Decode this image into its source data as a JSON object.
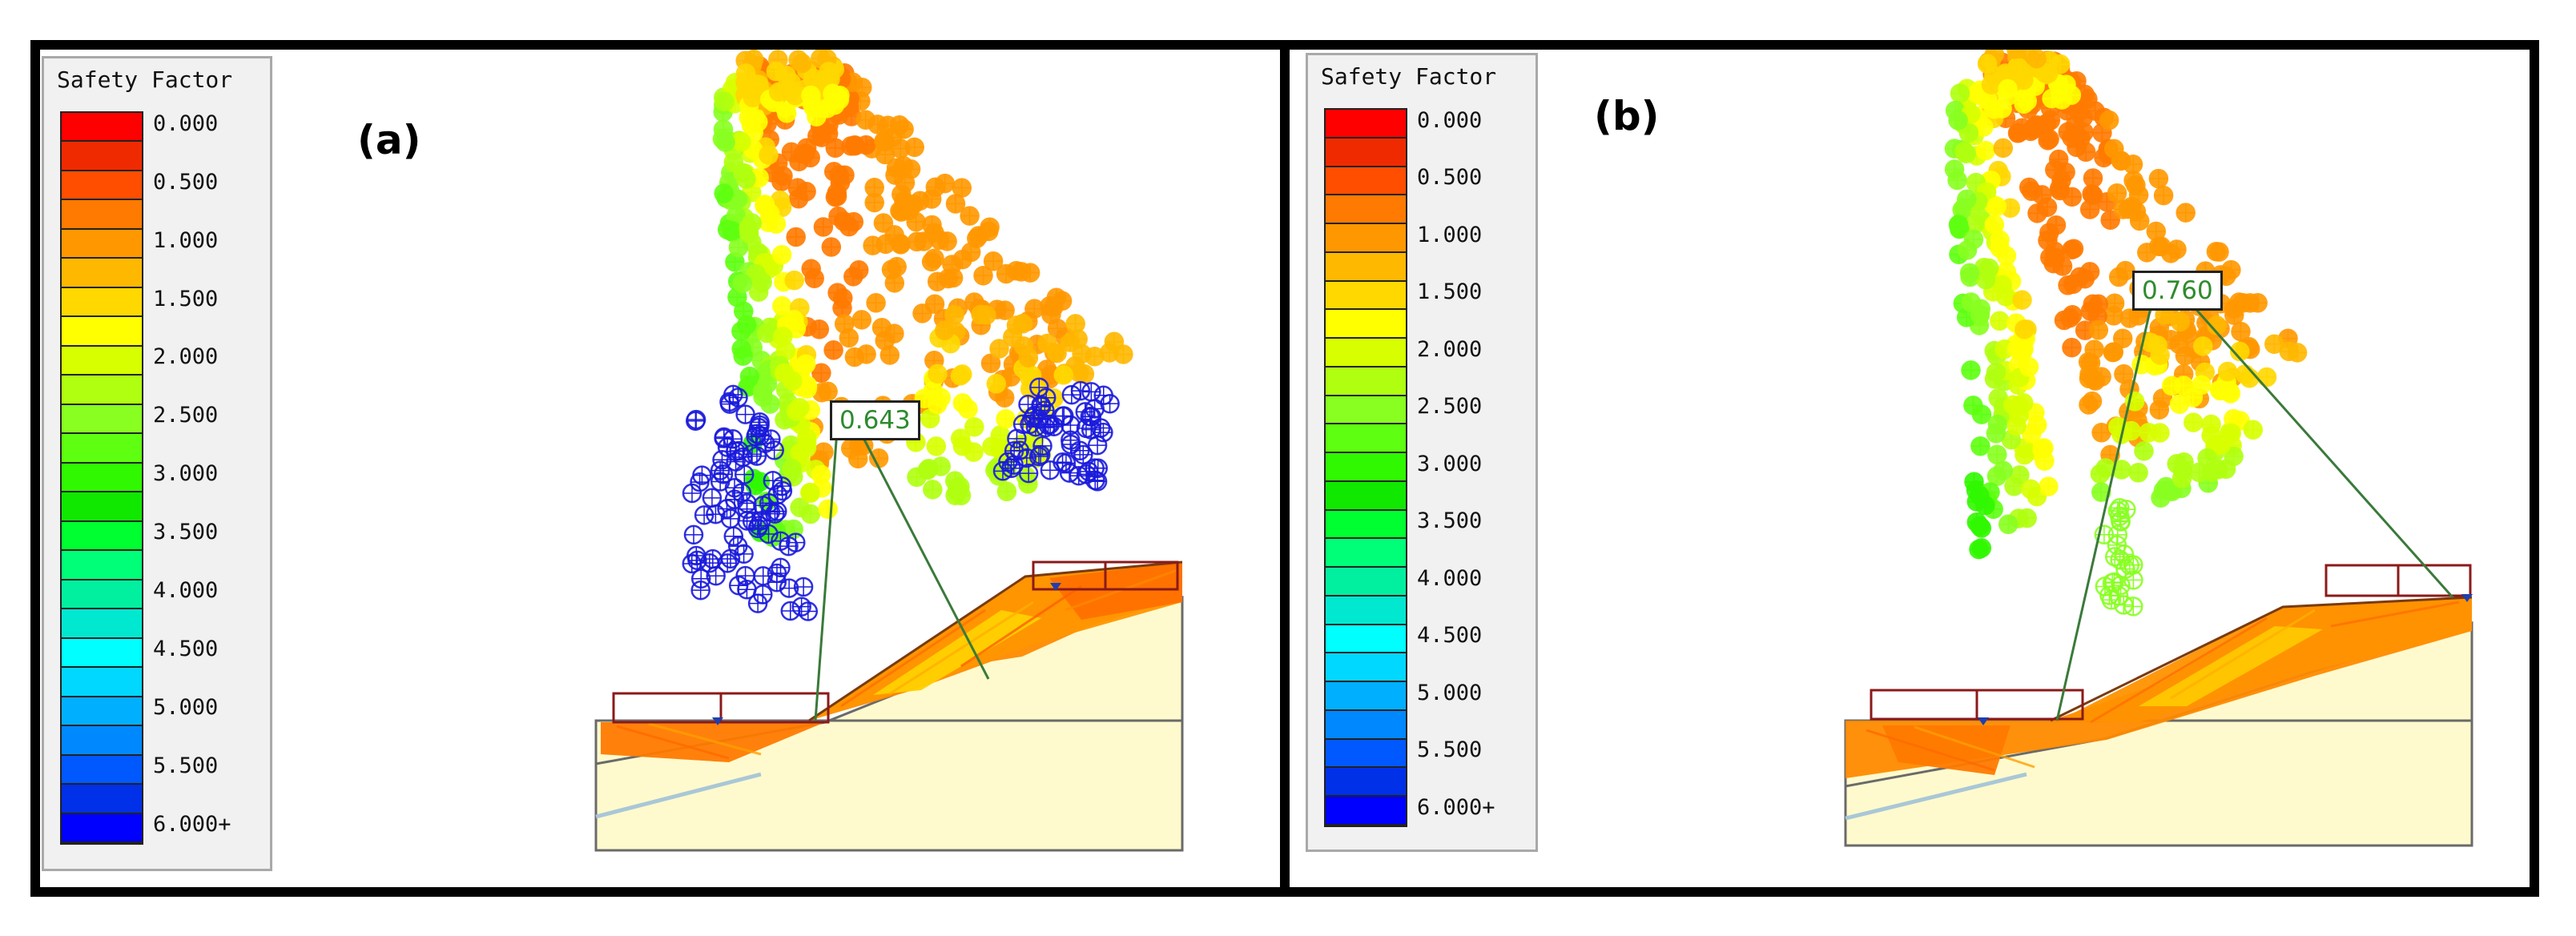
{
  "figure": {
    "panels": [
      {
        "label": "(a)",
        "min_safety_factor": "0.643",
        "legend": {
          "title": "Safety Factor",
          "ticks": [
            "0.000",
            "0.500",
            "1.000",
            "1.500",
            "2.000",
            "2.500",
            "3.000",
            "3.500",
            "4.000",
            "4.500",
            "5.000",
            "5.500",
            "6.000+"
          ]
        }
      },
      {
        "label": "(b)",
        "min_safety_factor": "0.760",
        "legend": {
          "title": "Safety Factor",
          "ticks": [
            "0.000",
            "0.500",
            "1.000",
            "1.500",
            "2.000",
            "2.500",
            "3.000",
            "3.500",
            "4.000",
            "4.500",
            "5.000",
            "5.500",
            "6.000+"
          ]
        }
      }
    ],
    "colors": {
      "scale": [
        "#ff0000",
        "#f02a00",
        "#ff4e00",
        "#ff7a00",
        "#ff9800",
        "#ffb800",
        "#ffd800",
        "#ffff00",
        "#d8ff00",
        "#b0ff10",
        "#88ff20",
        "#5eff10",
        "#30f800",
        "#10e800",
        "#00ff30",
        "#00ff78",
        "#00f0a0",
        "#00e8d0",
        "#00ffff",
        "#00d8ff",
        "#00b0ff",
        "#0088ff",
        "#0058ff",
        "#0030e8",
        "#0000ff"
      ],
      "slope_fill": "#fffacd",
      "slope_failure": "#ff8a00",
      "load_outline": "#8b1a1a",
      "radius_line": "#3a7a3a",
      "low_fs_marker": "#1a1adc"
    }
  }
}
